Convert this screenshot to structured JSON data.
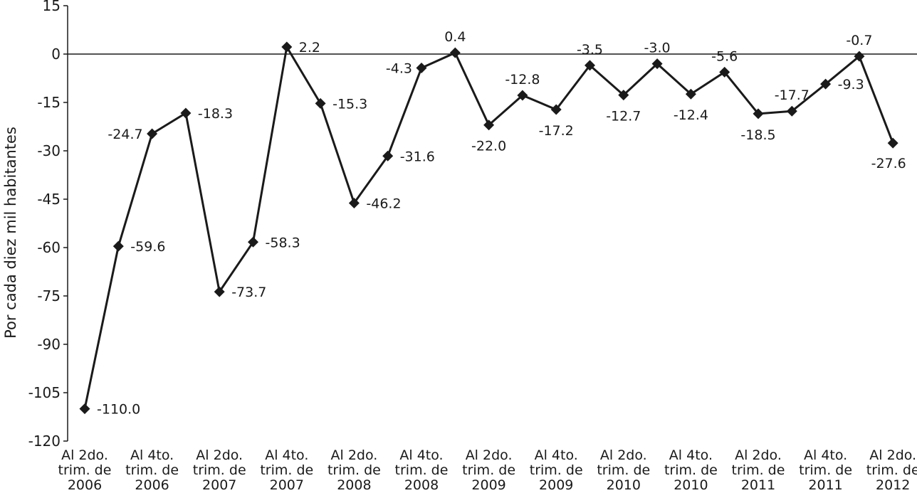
{
  "chart_data": {
    "type": "line",
    "ylabel": "Por cada diez mil habitantes",
    "xlabel": "",
    "title": "",
    "ylim": [
      -120,
      15
    ],
    "yticks": [
      15,
      0,
      -15,
      -30,
      -45,
      -60,
      -75,
      -90,
      -105,
      -120
    ],
    "grid": false,
    "legend": "none",
    "line_color": "#1a1a1a",
    "x": [
      "Al 2do. trim. de 2006",
      "",
      "Al 4to. trim. de 2006",
      "",
      "Al 2do. trim. de 2007",
      "",
      "Al 4to. trim. de 2007",
      "",
      "Al 2do. trim. de 2008",
      "",
      "Al 4to. trim. de 2008",
      "",
      "Al 2do. trim. de 2009",
      "",
      "Al 4to. trim. de 2009",
      "",
      "Al 2do. trim. de 2010",
      "",
      "Al 4to. trim. de 2010",
      "",
      "Al 2do. trim. de 2011",
      "",
      "Al 4to. trim. de 2011",
      "",
      "Al 2do. trim. de 2012"
    ],
    "category_labels": [
      [
        "Al 2do.",
        "trim. de",
        "2006"
      ],
      [
        "Al 4to.",
        "trim. de",
        "2006"
      ],
      [
        "Al 2do.",
        "trim. de",
        "2007"
      ],
      [
        "Al 4to.",
        "trim. de",
        "2007"
      ],
      [
        "Al 2do.",
        "trim. de",
        "2008"
      ],
      [
        "Al 4to.",
        "trim. de",
        "2008"
      ],
      [
        "Al 2do.",
        "trim. de",
        "2009"
      ],
      [
        "Al 4to.",
        "trim. de",
        "2009"
      ],
      [
        "Al 2do.",
        "trim. de",
        "2010"
      ],
      [
        "Al 4to.",
        "trim. de",
        "2010"
      ],
      [
        "Al 2do.",
        "trim. de",
        "2011"
      ],
      [
        "Al 4to.",
        "trim. de",
        "2011"
      ],
      [
        "Al 2do.",
        "trim. de",
        "2012"
      ]
    ],
    "values": [
      -110.0,
      -59.6,
      -24.7,
      -18.3,
      -73.7,
      -58.3,
      2.2,
      -15.3,
      -46.2,
      -31.6,
      -4.3,
      0.4,
      -22.0,
      -12.8,
      -17.2,
      -3.5,
      -12.7,
      -3.0,
      -12.4,
      -5.6,
      -18.5,
      -17.7,
      -9.3,
      -0.7,
      -27.6
    ],
    "data_labels": [
      "-110.0",
      "-59.6",
      "-24.7",
      "-18.3",
      "-73.7",
      "-58.3",
      "2.2",
      "-15.3",
      "-46.2",
      "-31.6",
      "-4.3",
      "0.4",
      "-22.0",
      "-12.8",
      "-17.2",
      "-3.5",
      "-12.7",
      "-3.0",
      "-12.4",
      "-5.6",
      "-18.5",
      "-17.7",
      "-9.3",
      "-0.7",
      "-27.6"
    ],
    "data_label_placement": [
      "right",
      "right",
      "left",
      "right",
      "right",
      "right",
      "right",
      "right",
      "right",
      "right",
      "left",
      "above",
      "below",
      "above",
      "below",
      "above",
      "below",
      "above",
      "below",
      "above",
      "below",
      "above",
      "right",
      "above",
      "below"
    ]
  }
}
